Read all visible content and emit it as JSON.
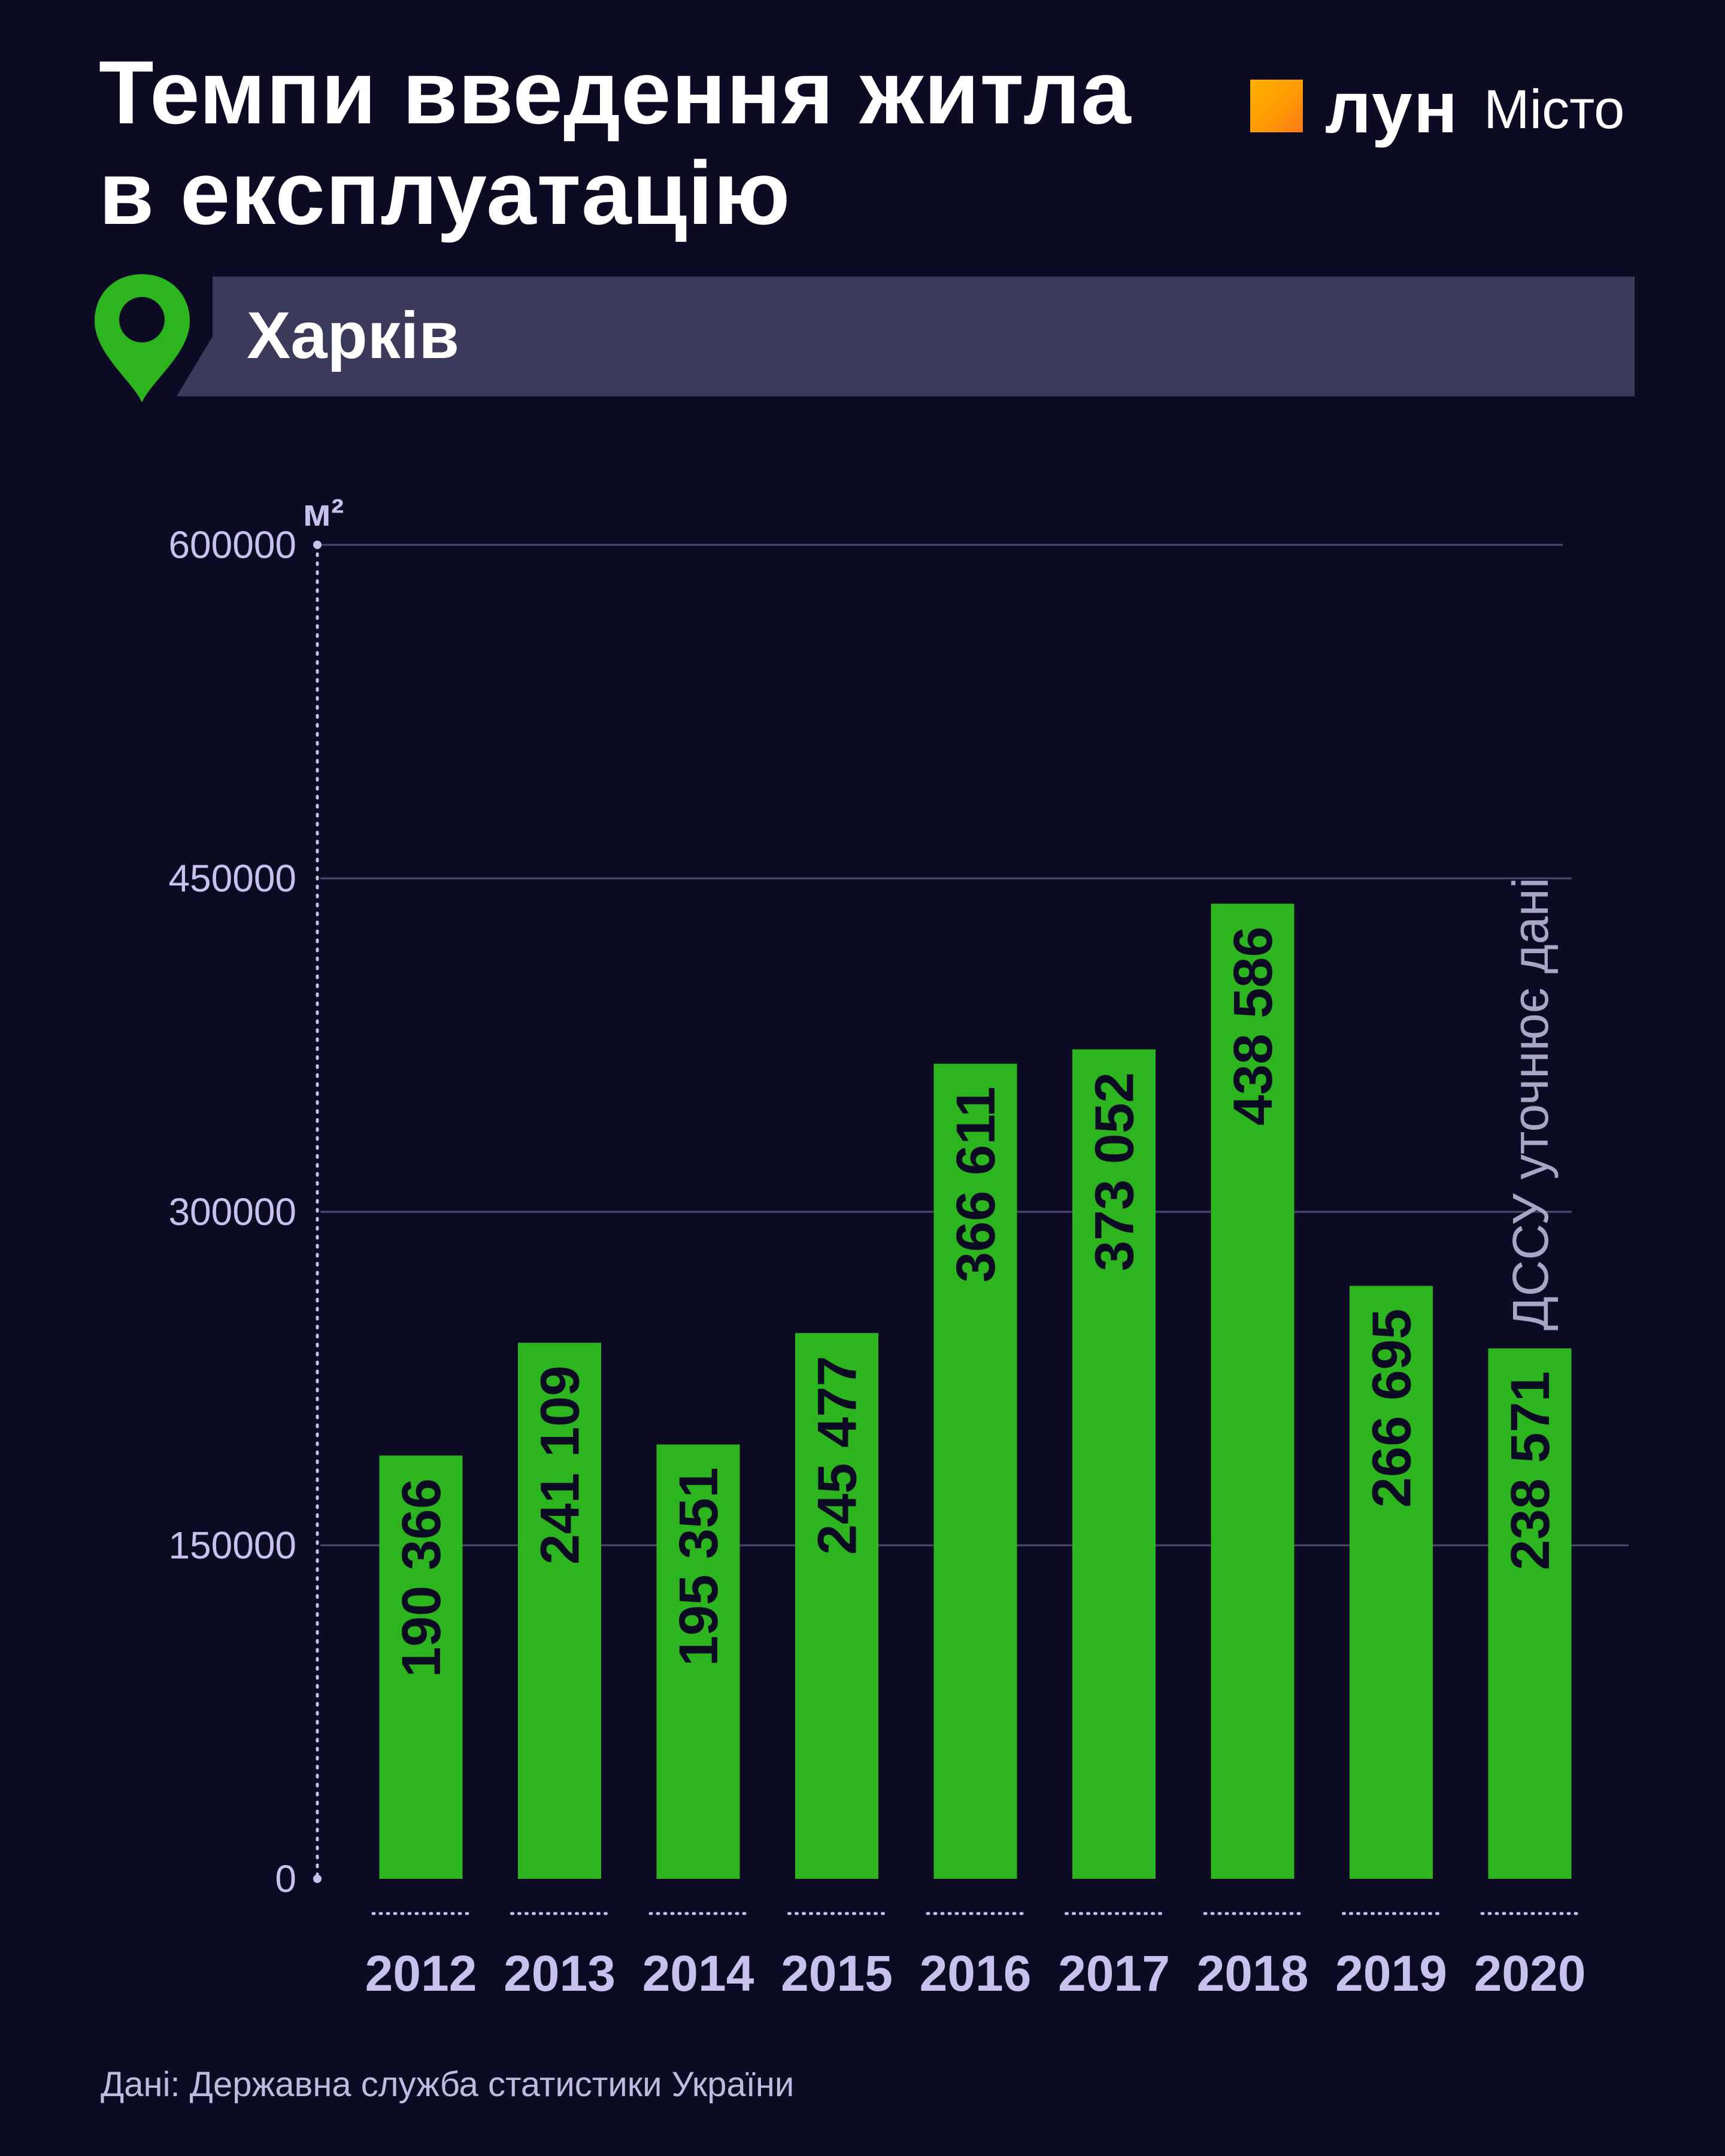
{
  "title_lines": [
    "Темпи введення житла",
    "в експлуатацію"
  ],
  "brand": {
    "name": "лун",
    "suffix": "Місто",
    "accent_color": "#ff9a00"
  },
  "city": {
    "name": "Харків",
    "icon": "map-pin-icon",
    "pin_color": "#2db51f"
  },
  "source": "Дані: Державна служба статистики України",
  "chart_data": {
    "type": "bar",
    "title": "Темпи введення житла в експлуатацію",
    "subtitle": "Харків",
    "ylabel": "м²",
    "xlabel": "",
    "ylim": [
      0,
      600000
    ],
    "yticks": [
      "0",
      "150000",
      "300000",
      "450000",
      "600000"
    ],
    "grid": true,
    "categories": [
      "2012",
      "2013",
      "2014",
      "2015",
      "2016",
      "2017",
      "2018",
      "2019",
      "2020"
    ],
    "values": [
      190366,
      241109,
      195351,
      245477,
      366611,
      373052,
      438586,
      266695,
      238571
    ],
    "value_labels": [
      "190 366",
      "241 109",
      "195 351",
      "245 477",
      "366 611",
      "373 052",
      "438 586",
      "266 695",
      "238 571"
    ],
    "bar_color": "#2db51f",
    "annotations": [
      {
        "category": "2020",
        "text": "ДССУ уточнює дані"
      }
    ]
  }
}
